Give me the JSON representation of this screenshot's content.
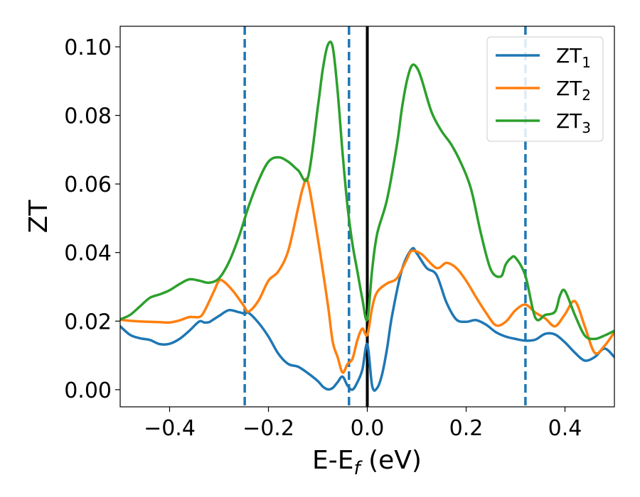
{
  "chart_data": {
    "type": "line",
    "title": "",
    "xlabel": "E-E",
    "xlabel_sub": "f",
    "xlabel_unit": " (eV)",
    "ylabel": "ZT",
    "xlim": [
      -0.5,
      0.5
    ],
    "ylim": [
      -0.005,
      0.106
    ],
    "xticks": [
      -0.4,
      -0.2,
      0.0,
      0.2,
      0.4
    ],
    "xtick_labels": [
      "−0.4",
      "−0.2",
      "0.0",
      "0.2",
      "0.4"
    ],
    "yticks": [
      0.0,
      0.02,
      0.04,
      0.06,
      0.08,
      0.1
    ],
    "ytick_labels": [
      "0.00",
      "0.02",
      "0.04",
      "0.06",
      "0.08",
      "0.10"
    ],
    "grid": false,
    "legend_position": "top-right",
    "vlines": [
      {
        "x": -0.248,
        "style": "dashed",
        "color": "#1f77b4"
      },
      {
        "x": -0.037,
        "style": "dashed",
        "color": "#1f77b4"
      },
      {
        "x": 0.0,
        "style": "solid",
        "color": "#000000"
      },
      {
        "x": 0.32,
        "style": "dashed",
        "color": "#1f77b4"
      }
    ],
    "series": [
      {
        "name": "ZT",
        "sub": "1",
        "color": "#1f77b4",
        "x": [
          -0.5,
          -0.48,
          -0.46,
          -0.44,
          -0.42,
          -0.4,
          -0.38,
          -0.36,
          -0.34,
          -0.33,
          -0.32,
          -0.31,
          -0.3,
          -0.28,
          -0.26,
          -0.248,
          -0.24,
          -0.22,
          -0.2,
          -0.18,
          -0.16,
          -0.14,
          -0.12,
          -0.1,
          -0.09,
          -0.08,
          -0.07,
          -0.06,
          -0.05,
          -0.04,
          -0.03,
          -0.02,
          -0.01,
          0.0,
          0.01,
          0.02,
          0.03,
          0.04,
          0.05,
          0.07,
          0.09,
          0.1,
          0.12,
          0.14,
          0.16,
          0.18,
          0.2,
          0.22,
          0.24,
          0.26,
          0.28,
          0.3,
          0.32,
          0.34,
          0.36,
          0.38,
          0.4,
          0.42,
          0.44,
          0.46,
          0.48,
          0.5
        ],
        "y": [
          0.0185,
          0.016,
          0.015,
          0.0145,
          0.0133,
          0.0134,
          0.0148,
          0.0172,
          0.0199,
          0.0196,
          0.0197,
          0.0206,
          0.0215,
          0.0232,
          0.0226,
          0.0222,
          0.0224,
          0.0195,
          0.0155,
          0.0105,
          0.0075,
          0.0067,
          0.0048,
          0.0025,
          0.0009,
          0.0001,
          0.0005,
          0.0022,
          0.0038,
          0.0012,
          0.0,
          0.0022,
          0.0058,
          0.0133,
          0.001,
          0.0005,
          0.0045,
          0.012,
          0.0215,
          0.035,
          0.041,
          0.0398,
          0.0355,
          0.0335,
          0.0255,
          0.0205,
          0.0198,
          0.0203,
          0.019,
          0.0168,
          0.0155,
          0.0148,
          0.0143,
          0.0146,
          0.0163,
          0.0161,
          0.0138,
          0.0108,
          0.0085,
          0.0095,
          0.012,
          0.0095
        ]
      },
      {
        "name": "ZT",
        "sub": "2",
        "color": "#ff7f0e",
        "x": [
          -0.5,
          -0.48,
          -0.46,
          -0.44,
          -0.42,
          -0.4,
          -0.38,
          -0.36,
          -0.34,
          -0.33,
          -0.31,
          -0.3,
          -0.29,
          -0.27,
          -0.25,
          -0.24,
          -0.22,
          -0.2,
          -0.18,
          -0.16,
          -0.14,
          -0.13,
          -0.12,
          -0.1,
          -0.08,
          -0.07,
          -0.06,
          -0.05,
          -0.04,
          -0.03,
          -0.02,
          -0.01,
          0.0,
          0.01,
          0.02,
          0.04,
          0.06,
          0.08,
          0.09,
          0.11,
          0.14,
          0.16,
          0.18,
          0.2,
          0.22,
          0.24,
          0.26,
          0.28,
          0.3,
          0.32,
          0.34,
          0.36,
          0.38,
          0.4,
          0.42,
          0.44,
          0.46,
          0.48,
          0.5
        ],
        "y": [
          0.0204,
          0.0201,
          0.0199,
          0.0198,
          0.0197,
          0.0196,
          0.0202,
          0.0212,
          0.0212,
          0.0228,
          0.0288,
          0.0318,
          0.0315,
          0.0285,
          0.0245,
          0.0228,
          0.026,
          0.0318,
          0.0345,
          0.0405,
          0.053,
          0.059,
          0.0605,
          0.044,
          0.025,
          0.014,
          0.0095,
          0.005,
          0.0075,
          0.009,
          0.0145,
          0.0178,
          0.016,
          0.024,
          0.0285,
          0.031,
          0.0325,
          0.038,
          0.0405,
          0.0395,
          0.0355,
          0.037,
          0.0355,
          0.0318,
          0.027,
          0.0225,
          0.0188,
          0.0198,
          0.0232,
          0.0248,
          0.0225,
          0.0208,
          0.0185,
          0.022,
          0.0258,
          0.0185,
          0.0108,
          0.0128,
          0.0168
        ]
      },
      {
        "name": "ZT",
        "sub": "3",
        "color": "#2ca02c",
        "x": [
          -0.5,
          -0.48,
          -0.46,
          -0.44,
          -0.42,
          -0.4,
          -0.38,
          -0.36,
          -0.34,
          -0.32,
          -0.3,
          -0.28,
          -0.26,
          -0.24,
          -0.22,
          -0.2,
          -0.18,
          -0.16,
          -0.14,
          -0.12,
          -0.1,
          -0.09,
          -0.08,
          -0.07,
          -0.06,
          -0.05,
          -0.04,
          -0.03,
          -0.02,
          -0.01,
          0.0,
          0.01,
          0.02,
          0.04,
          0.06,
          0.07,
          0.08,
          0.09,
          0.1,
          0.11,
          0.13,
          0.15,
          0.17,
          0.19,
          0.21,
          0.23,
          0.25,
          0.27,
          0.28,
          0.29,
          0.3,
          0.32,
          0.34,
          0.36,
          0.38,
          0.39,
          0.4,
          0.42,
          0.44,
          0.46,
          0.48,
          0.5
        ],
        "y": [
          0.0205,
          0.0218,
          0.0243,
          0.0268,
          0.0278,
          0.029,
          0.0308,
          0.0322,
          0.0318,
          0.0312,
          0.0325,
          0.0372,
          0.0445,
          0.0535,
          0.061,
          0.0665,
          0.0678,
          0.0665,
          0.064,
          0.062,
          0.0825,
          0.0935,
          0.1005,
          0.1,
          0.087,
          0.069,
          0.0535,
          0.0425,
          0.0345,
          0.0265,
          0.0205,
          0.0352,
          0.0455,
          0.0555,
          0.0715,
          0.082,
          0.09,
          0.0945,
          0.094,
          0.0905,
          0.081,
          0.0755,
          0.0715,
          0.066,
          0.0585,
          0.0455,
          0.035,
          0.033,
          0.0365,
          0.0383,
          0.0385,
          0.0332,
          0.021,
          0.0218,
          0.0228,
          0.0275,
          0.0288,
          0.0218,
          0.0158,
          0.0148,
          0.0158,
          0.0172
        ]
      }
    ]
  }
}
